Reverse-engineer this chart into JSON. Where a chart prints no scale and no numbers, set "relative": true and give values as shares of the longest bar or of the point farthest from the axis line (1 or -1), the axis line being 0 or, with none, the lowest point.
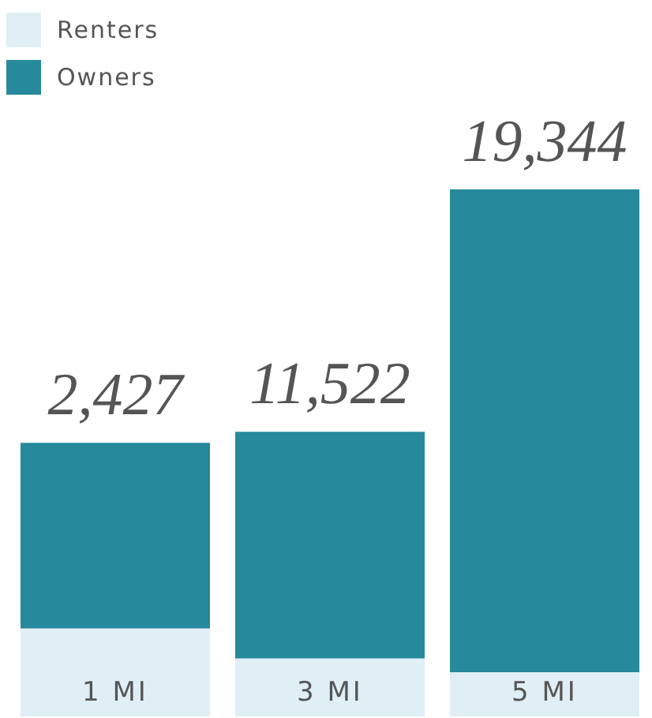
{
  "chart_data": {
    "type": "bar",
    "stacked": true,
    "relative": true,
    "categories": [
      "1 MI",
      "3 MI",
      "5 MI"
    ],
    "series": [
      {
        "name": "Renters",
        "color": "#e0eff5",
        "values": [
          0.167,
          0.11,
          0.084
        ]
      },
      {
        "name": "Owners",
        "color": "#268a9c",
        "values": [
          0.352,
          0.43,
          0.916
        ]
      }
    ],
    "annotations": [
      "2,427",
      "11,522",
      "19,344"
    ],
    "legend": "top left",
    "grid": false
  }
}
